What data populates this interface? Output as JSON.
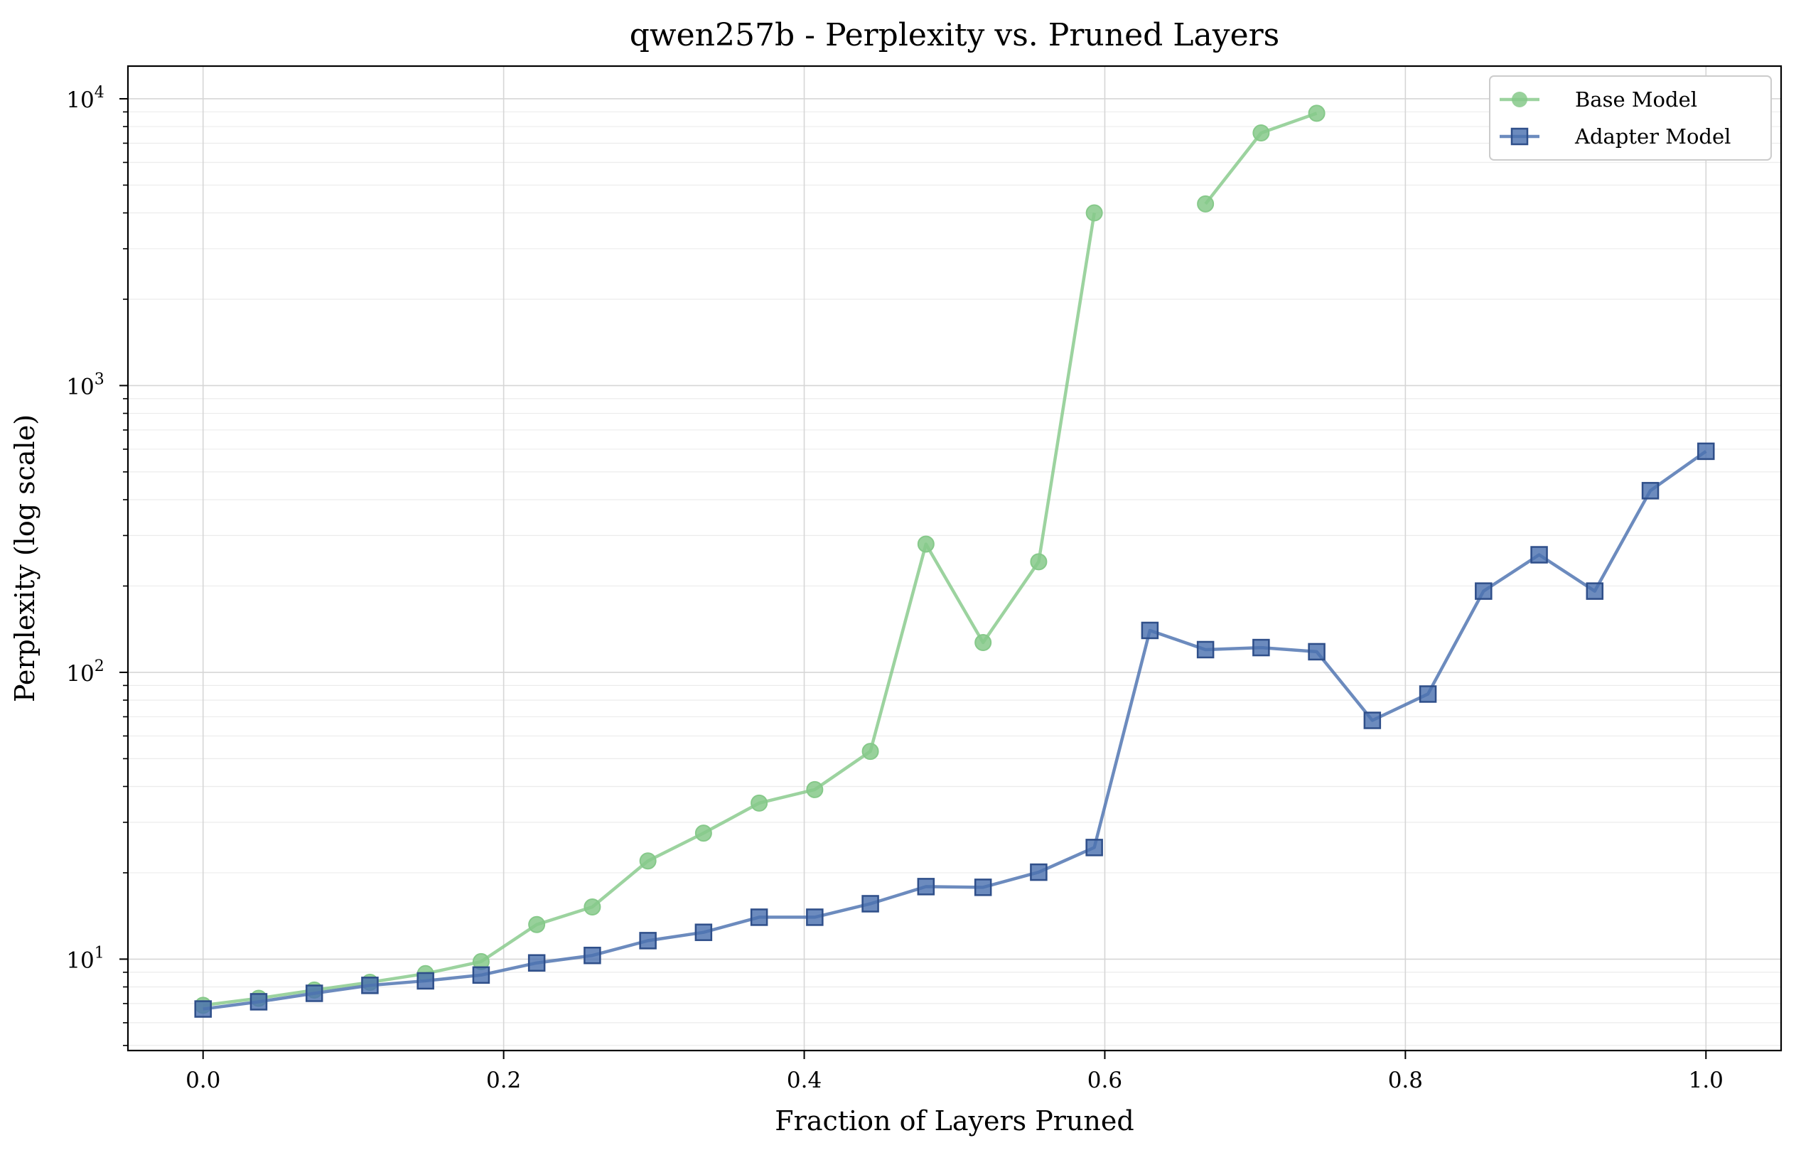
{
  "chart_data": {
    "type": "line",
    "title": "qwen257b - Perplexity vs. Pruned Layers",
    "xlabel": "Fraction of Layers Pruned",
    "ylabel": "Perplexity (log scale)",
    "yscale": "log",
    "xlim": [
      -0.05,
      1.05
    ],
    "ylim": [
      4.8,
      13000
    ],
    "xticks": [
      "0.0",
      "0.2",
      "0.4",
      "0.6",
      "0.8",
      "1.0"
    ],
    "yticks": [
      {
        "base": "10",
        "exp": "1"
      },
      {
        "base": "10",
        "exp": "2"
      },
      {
        "base": "10",
        "exp": "3"
      },
      {
        "base": "10",
        "exp": "4"
      }
    ],
    "grid": true,
    "legend_position": "top-right",
    "series": [
      {
        "name": "Base Model",
        "color": "#86c98a",
        "marker": "circle",
        "points": [
          [
            0.0,
            6.9
          ],
          [
            0.037,
            7.3
          ],
          [
            0.074,
            7.8
          ],
          [
            0.111,
            8.3
          ],
          [
            0.148,
            8.9
          ],
          [
            0.185,
            9.8
          ],
          [
            0.222,
            13.2
          ],
          [
            0.259,
            15.2
          ],
          [
            0.296,
            22.0
          ],
          [
            0.333,
            27.5
          ],
          [
            0.37,
            35.0
          ],
          [
            0.407,
            39.0
          ],
          [
            0.444,
            53.0
          ],
          [
            0.481,
            280.0
          ],
          [
            0.519,
            127.0
          ],
          [
            0.556,
            243.0
          ],
          [
            0.593,
            4000.0
          ],
          [
            0.667,
            4300.0
          ],
          [
            0.704,
            7600.0
          ],
          [
            0.741,
            8900.0
          ]
        ],
        "segments": [
          [
            0,
            16
          ],
          [
            17,
            19
          ]
        ]
      },
      {
        "name": "Adapter Model",
        "color": "#4c72b0",
        "marker": "square",
        "points": [
          [
            0.0,
            6.7
          ],
          [
            0.037,
            7.1
          ],
          [
            0.074,
            7.6
          ],
          [
            0.111,
            8.1
          ],
          [
            0.148,
            8.4
          ],
          [
            0.185,
            8.8
          ],
          [
            0.222,
            9.7
          ],
          [
            0.259,
            10.3
          ],
          [
            0.296,
            11.6
          ],
          [
            0.333,
            12.4
          ],
          [
            0.37,
            14.0
          ],
          [
            0.407,
            14.0
          ],
          [
            0.444,
            15.6
          ],
          [
            0.481,
            17.9
          ],
          [
            0.519,
            17.8
          ],
          [
            0.556,
            20.1
          ],
          [
            0.593,
            24.5
          ],
          [
            0.63,
            140.0
          ],
          [
            0.667,
            120.0
          ],
          [
            0.704,
            122.0
          ],
          [
            0.741,
            118.0
          ],
          [
            0.778,
            68.0
          ],
          [
            0.815,
            84.0
          ],
          [
            0.852,
            192.0
          ],
          [
            0.889,
            257.0
          ],
          [
            0.926,
            192.0
          ],
          [
            0.963,
            430.0
          ],
          [
            1.0,
            590.0
          ]
        ],
        "segments": [
          [
            0,
            27
          ]
        ]
      }
    ]
  }
}
